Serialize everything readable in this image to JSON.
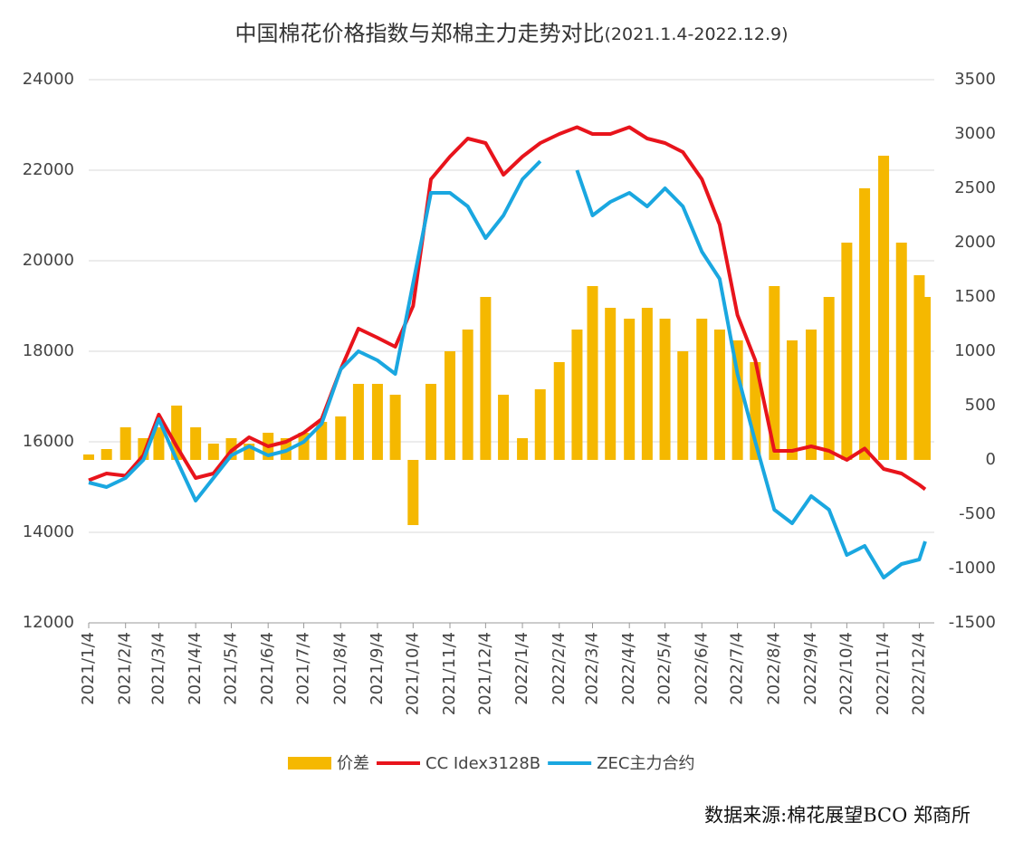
{
  "chart_data": {
    "type": "combo",
    "title": "中国棉花价格指数与郑棉主力走势对比",
    "subtitle": "(2021.1.4-2022.12.9)",
    "source": "数据来源:棉花展望BCO  郑商所",
    "x": [
      "2021/1/4",
      "2021/1/19",
      "2021/2/4",
      "2021/2/19",
      "2021/3/4",
      "2021/3/19",
      "2021/4/4",
      "2021/4/19",
      "2021/5/4",
      "2021/5/19",
      "2021/6/4",
      "2021/6/19",
      "2021/7/4",
      "2021/7/19",
      "2021/8/4",
      "2021/8/19",
      "2021/9/4",
      "2021/9/19",
      "2021/10/4",
      "2021/10/19",
      "2021/11/4",
      "2021/11/19",
      "2021/12/4",
      "2021/12/19",
      "2022/1/4",
      "2022/1/19",
      "2022/2/4",
      "2022/2/19",
      "2022/3/4",
      "2022/3/19",
      "2022/4/4",
      "2022/4/19",
      "2022/5/4",
      "2022/5/19",
      "2022/6/4",
      "2022/6/19",
      "2022/7/4",
      "2022/7/19",
      "2022/8/4",
      "2022/8/19",
      "2022/9/4",
      "2022/9/19",
      "2022/10/4",
      "2022/10/19",
      "2022/11/4",
      "2022/11/19",
      "2022/12/4",
      "2022/12/9"
    ],
    "series": [
      {
        "name": "价差",
        "type": "bar",
        "axis": "y2",
        "color": "#f5b800",
        "values": [
          50,
          100,
          300,
          200,
          300,
          500,
          300,
          150,
          200,
          150,
          250,
          200,
          250,
          350,
          400,
          700,
          700,
          600,
          -600,
          700,
          1000,
          1200,
          1500,
          600,
          200,
          650,
          900,
          1200,
          1600,
          1400,
          1300,
          1400,
          1300,
          1000,
          1300,
          1200,
          1100,
          900,
          1600,
          1100,
          1200,
          1500,
          2000,
          2500,
          2800,
          2000,
          1700,
          1500
        ]
      },
      {
        "name": "CC Idex3128B",
        "type": "line",
        "color": "#e8141c",
        "values": [
          15150,
          15300,
          15250,
          15700,
          16600,
          15900,
          15200,
          15300,
          15800,
          16100,
          15900,
          16000,
          16200,
          16500,
          17600,
          18500,
          18300,
          18100,
          19000,
          21800,
          22300,
          22700,
          22600,
          21900,
          22300,
          22600,
          22800,
          22950,
          22800,
          22800,
          22950,
          22700,
          22600,
          22400,
          21800,
          20800,
          18800,
          17800,
          15800,
          15800,
          15900,
          15800,
          15600,
          15850,
          15400,
          15300,
          15050,
          14950
        ]
      },
      {
        "name": "ZEC主力合约",
        "type": "line",
        "color": "#1aa7e0",
        "values": [
          15100,
          15000,
          15200,
          15600,
          16500,
          15600,
          14700,
          15200,
          15700,
          15900,
          15700,
          15800,
          16000,
          16400,
          17600,
          18000,
          17800,
          17500,
          19500,
          21500,
          21500,
          21200,
          20500,
          21000,
          21800,
          22200,
          null,
          22000,
          21000,
          21300,
          21500,
          21200,
          21600,
          21200,
          20200,
          19600,
          17500,
          16000,
          14500,
          14200,
          14800,
          14500,
          13500,
          13700,
          13000,
          13300,
          13400,
          13800
        ]
      }
    ],
    "ylim": [
      12000,
      24000
    ],
    "yticks": [
      12000,
      14000,
      16000,
      18000,
      20000,
      22000,
      24000
    ],
    "y2lim": [
      -1500,
      3500
    ],
    "y2ticks": [
      -1500,
      -1000,
      -500,
      0,
      500,
      1000,
      1500,
      2000,
      2500,
      3000,
      3500
    ],
    "xticks": [
      "2021/1/4",
      "2021/2/4",
      "2021/3/4",
      "2021/4/4",
      "2021/5/4",
      "2021/6/4",
      "2021/7/4",
      "2021/8/4",
      "2021/9/4",
      "2021/10/4",
      "2021/11/4",
      "2021/12/4",
      "2022/1/4",
      "2022/2/4",
      "2022/3/4",
      "2022/4/4",
      "2022/5/4",
      "2022/6/4",
      "2022/7/4",
      "2022/8/4",
      "2022/9/4",
      "2022/10/4",
      "2022/11/4",
      "2022/12/4"
    ],
    "grid": true
  }
}
